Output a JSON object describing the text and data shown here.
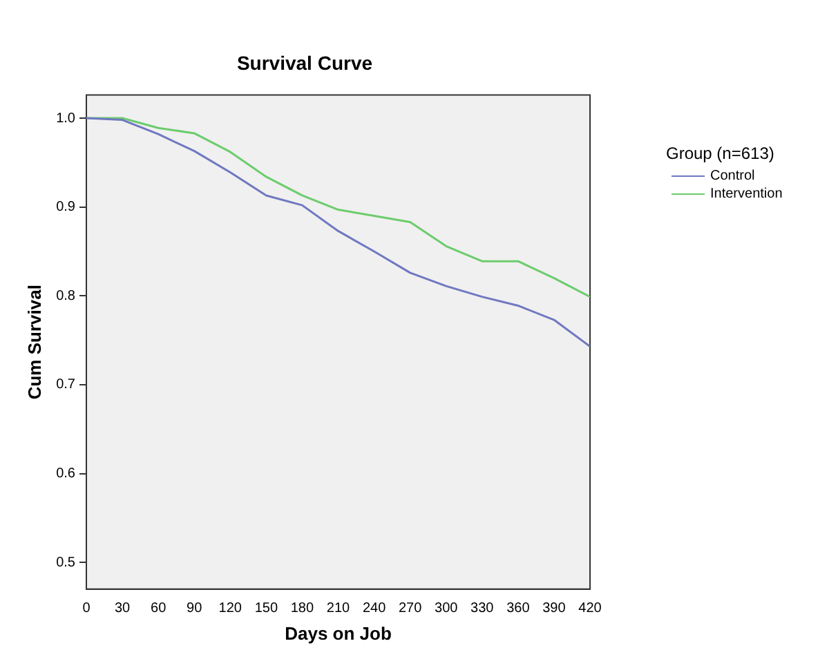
{
  "chart_data": {
    "type": "line",
    "title": "Survival Curve",
    "xlabel": "Days on Job",
    "ylabel": "Cum Survival",
    "legend_title": "Group (n=613)",
    "x": [
      0,
      30,
      60,
      90,
      120,
      150,
      180,
      210,
      240,
      270,
      300,
      330,
      360,
      390,
      420
    ],
    "series": [
      {
        "name": "Control",
        "color": "#6f78c0",
        "values": [
          1.0,
          0.998,
          0.982,
          0.963,
          0.939,
          0.913,
          0.902,
          0.873,
          0.85,
          0.826,
          0.811,
          0.799,
          0.789,
          0.773,
          0.743
        ]
      },
      {
        "name": "Intervention",
        "color": "#6ccc6c",
        "values": [
          1.0,
          1.0,
          0.989,
          0.983,
          0.962,
          0.934,
          0.913,
          0.897,
          0.89,
          0.883,
          0.856,
          0.839,
          0.839,
          0.82,
          0.799
        ]
      }
    ],
    "xlim": [
      0,
      420
    ],
    "xticks": [
      0,
      30,
      60,
      90,
      120,
      150,
      180,
      210,
      240,
      270,
      300,
      330,
      360,
      390,
      420
    ],
    "ylim": [
      0.47,
      1.026
    ],
    "yticks": [
      {
        "value": 0.5,
        "label": "0.5"
      },
      {
        "value": 0.6,
        "label": "0.6"
      },
      {
        "value": 0.7,
        "label": "0.7"
      },
      {
        "value": 0.8,
        "label": "0.8"
      },
      {
        "value": 0.9,
        "label": "0.9"
      },
      {
        "value": 1.0,
        "label": "1.0"
      }
    ],
    "grid": false,
    "legend": "top right",
    "marker": "none",
    "line_style": "solid"
  }
}
